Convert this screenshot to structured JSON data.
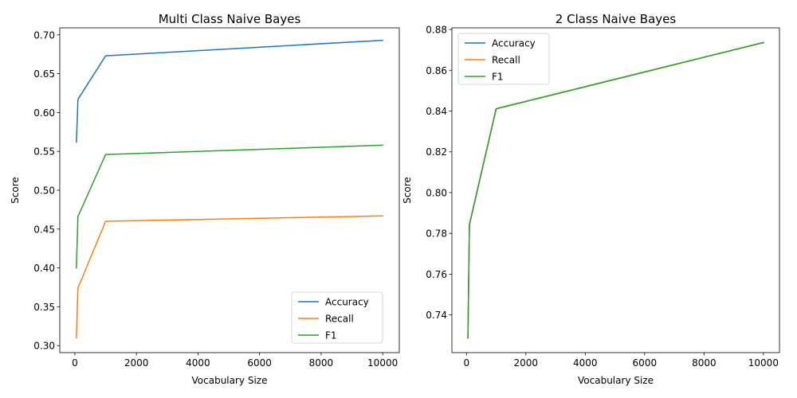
{
  "chart_data": [
    {
      "type": "line",
      "title": "Multi Class Naive Bayes",
      "xlabel": "Vocabulary Size",
      "ylabel": "Score",
      "x": [
        50,
        100,
        1000,
        10000
      ],
      "xlim": [
        -490,
        10540
      ],
      "ylim": [
        0.291,
        0.709
      ],
      "xticks": [
        0,
        2000,
        4000,
        6000,
        8000,
        10000
      ],
      "xtick_labels": [
        "0",
        "2000",
        "4000",
        "6000",
        "8000",
        "10000"
      ],
      "yticks": [
        0.3,
        0.35,
        0.4,
        0.45,
        0.5,
        0.55,
        0.6,
        0.65,
        0.7
      ],
      "ytick_labels": [
        "0.30",
        "0.35",
        "0.40",
        "0.45",
        "0.50",
        "0.55",
        "0.60",
        "0.65",
        "0.70"
      ],
      "grid": false,
      "legend_position": "lower-right",
      "series": [
        {
          "name": "Accuracy",
          "color": "#1f77b4",
          "values": [
            0.562,
            0.617,
            0.673,
            0.693
          ]
        },
        {
          "name": "Recall",
          "color": "#ff7f0e",
          "values": [
            0.31,
            0.374,
            0.46,
            0.467
          ]
        },
        {
          "name": "F1",
          "color": "#2ca02c",
          "values": [
            0.4,
            0.466,
            0.546,
            0.558
          ]
        }
      ]
    },
    {
      "type": "line",
      "title": "2 Class Naive Bayes",
      "xlabel": "Vocabulary Size",
      "ylabel": "Score",
      "x": [
        50,
        100,
        1000,
        10000
      ],
      "xlim": [
        -490,
        10540
      ],
      "ylim": [
        0.7215,
        0.8808
      ],
      "xticks": [
        0,
        2000,
        4000,
        6000,
        8000,
        10000
      ],
      "xtick_labels": [
        "0",
        "2000",
        "4000",
        "6000",
        "8000",
        "10000"
      ],
      "yticks": [
        0.74,
        0.76,
        0.78,
        0.8,
        0.82,
        0.84,
        0.86,
        0.88
      ],
      "ytick_labels": [
        "0.74",
        "0.76",
        "0.78",
        "0.80",
        "0.82",
        "0.84",
        "0.86",
        "0.88"
      ],
      "grid": false,
      "legend_position": "upper-left",
      "series": [
        {
          "name": "Accuracy",
          "color": "#1f77b4",
          "values": [
            0.7287,
            0.7843,
            0.8411,
            0.8736
          ]
        },
        {
          "name": "Recall",
          "color": "#ff7f0e",
          "values": [
            0.7287,
            0.7843,
            0.8411,
            0.8736
          ]
        },
        {
          "name": "F1",
          "color": "#2ca02c",
          "values": [
            0.7287,
            0.7843,
            0.8411,
            0.8736
          ]
        }
      ]
    }
  ]
}
